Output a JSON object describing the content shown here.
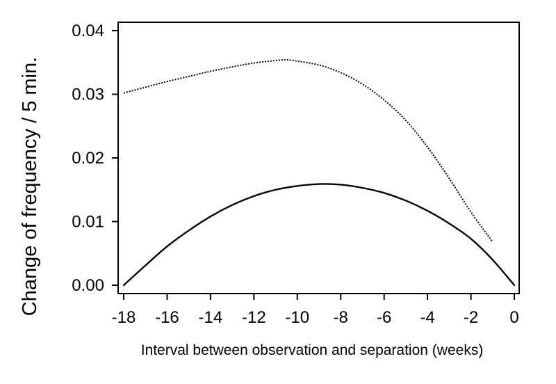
{
  "chart_data": {
    "type": "line",
    "title": "",
    "xlabel": "Interval between observation and separation (weeks)",
    "ylabel": "Change of frequency / 5 min.",
    "xlim": [
      -18,
      0
    ],
    "ylim": [
      0,
      0.04
    ],
    "x_ticks": [
      -18,
      -16,
      -14,
      -12,
      -10,
      -8,
      -6,
      -4,
      -2,
      0
    ],
    "x_tick_labels": [
      "-18",
      "-16",
      "-14",
      "-12",
      "-10",
      "-8",
      "-6",
      "-4",
      "-2",
      "0"
    ],
    "y_ticks": [
      0,
      0.01,
      0.02,
      0.03,
      0.04
    ],
    "y_tick_labels": [
      "0.00",
      "0.01",
      "0.02",
      "0.03",
      "0.04"
    ],
    "grid": false,
    "legend": "none",
    "series": [
      {
        "style": "solid",
        "color": "#000000",
        "x": [
          -18,
          -17,
          -16,
          -15,
          -14,
          -13,
          -12,
          -11,
          -10,
          -9,
          -8,
          -7,
          -6,
          -5,
          -4,
          -3,
          -2,
          -1,
          0
        ],
        "y": [
          0.0,
          0.0031,
          0.0061,
          0.0086,
          0.0108,
          0.0126,
          0.014,
          0.015,
          0.0156,
          0.0159,
          0.0158,
          0.0153,
          0.0145,
          0.0133,
          0.0117,
          0.0097,
          0.0073,
          0.004,
          0.0
        ]
      },
      {
        "style": "dotted",
        "color": "#000000",
        "x": [
          -18,
          -17,
          -16,
          -15,
          -14,
          -13,
          -12,
          -11,
          -10.5,
          -10,
          -9,
          -8,
          -7,
          -6,
          -5,
          -4,
          -3,
          -2,
          -1
        ],
        "y": [
          0.0302,
          0.0311,
          0.032,
          0.0328,
          0.0336,
          0.0343,
          0.0349,
          0.0353,
          0.0354,
          0.0352,
          0.0346,
          0.0334,
          0.0316,
          0.0291,
          0.0259,
          0.0217,
          0.0168,
          0.0115,
          0.0068
        ]
      }
    ]
  }
}
